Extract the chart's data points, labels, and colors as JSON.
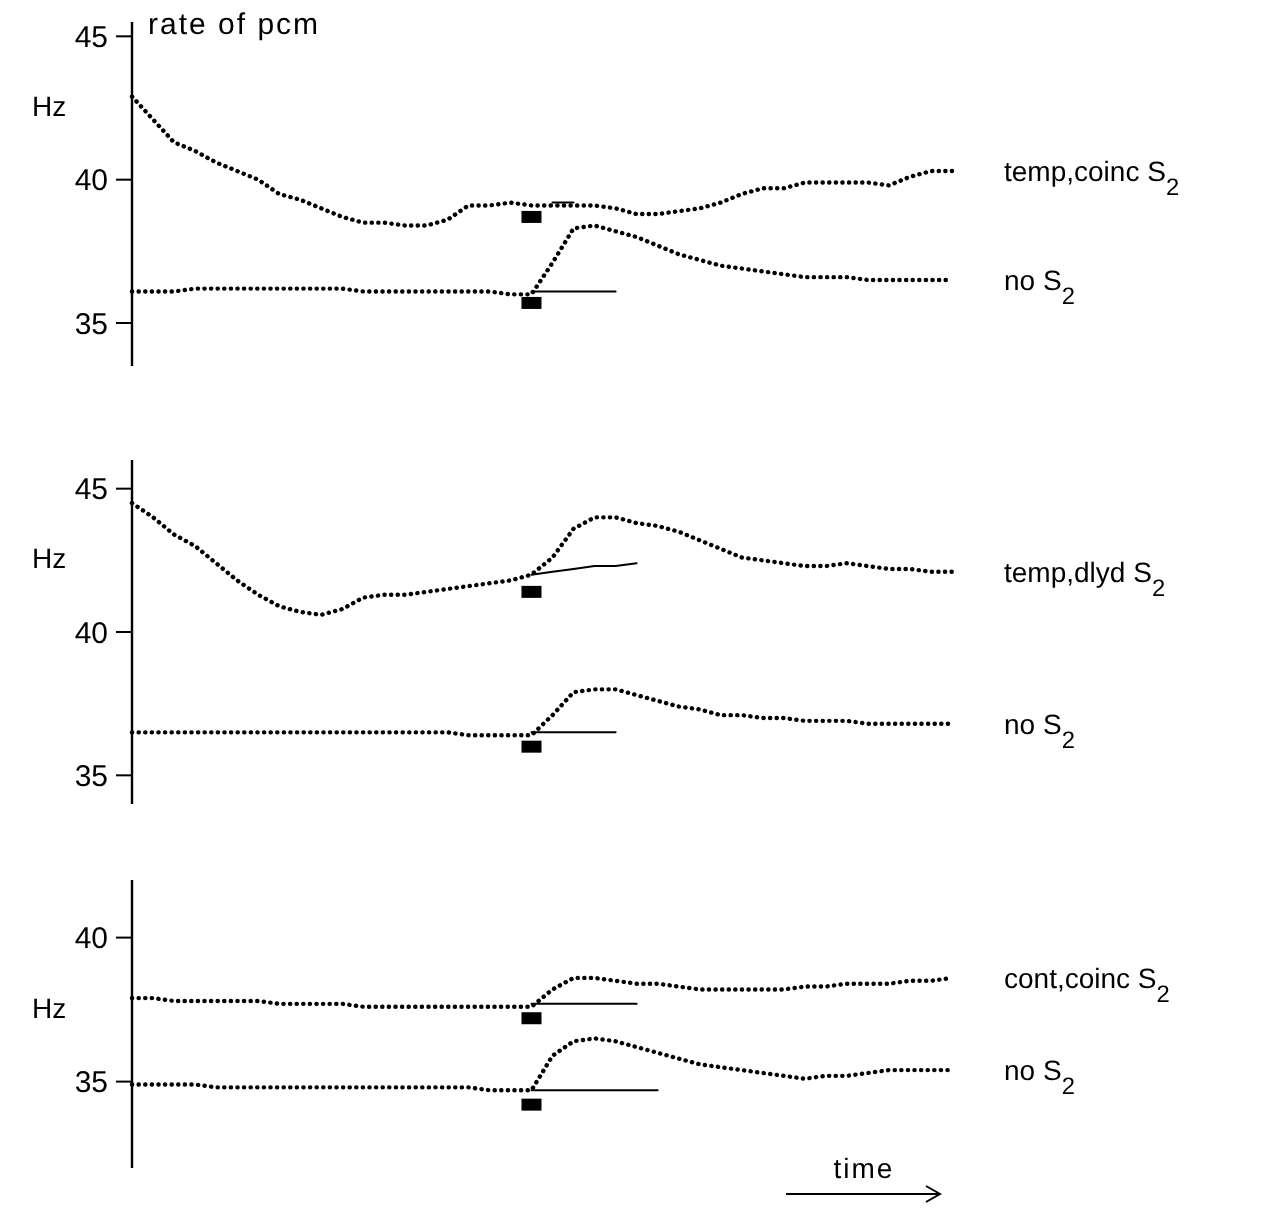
{
  "chart_data": [
    {
      "type": "line",
      "title": "rate of pcm",
      "ylabel": "Hz",
      "categories": [
        null,
        null,
        null,
        null,
        null,
        null,
        null,
        null,
        null,
        null,
        null,
        null,
        null,
        null,
        null,
        null,
        null,
        null,
        null,
        null,
        null,
        null,
        null,
        null,
        null,
        null,
        null,
        null,
        null,
        null,
        null,
        null,
        null,
        null,
        null,
        null,
        null,
        null,
        null,
        null
      ],
      "ylim": [
        33.5,
        45.5
      ],
      "yticks": [
        35,
        40,
        45
      ],
      "tick_labels": "y",
      "grid": false,
      "legend": false,
      "line_style": "dotted",
      "marker": "none",
      "series": [
        {
          "name": "temp,coinc S$_{2}$",
          "color": "#000000",
          "values": [
            42.9,
            42.1,
            41.3,
            41.0,
            40.6,
            40.3,
            40.0,
            39.5,
            39.3,
            39.0,
            38.7,
            38.5,
            38.5,
            38.4,
            38.4,
            38.6,
            39.1,
            39.1,
            39.2,
            39.1,
            39.1,
            39.1,
            39.1,
            39.0,
            38.8,
            38.8,
            38.9,
            39.0,
            39.2,
            39.5,
            39.7,
            39.7,
            39.9,
            39.9,
            39.9,
            39.9,
            39.8,
            40.1,
            40.3,
            40.3
          ]
        },
        {
          "name": "no S$_{2}$",
          "color": "#000000",
          "values": [
            36.1,
            36.1,
            36.1,
            36.2,
            36.2,
            36.2,
            36.2,
            36.2,
            36.2,
            36.2,
            36.2,
            36.1,
            36.1,
            36.1,
            36.1,
            36.1,
            36.1,
            36.1,
            36.0,
            36.0,
            37.1,
            38.3,
            38.4,
            38.2,
            38.0,
            37.7,
            37.4,
            37.2,
            37.0,
            36.9,
            36.8,
            36.7,
            36.6,
            36.6,
            36.6,
            36.5,
            36.5,
            36.5,
            36.5,
            36.5
          ]
        },
        {
          "type": "line",
          "line_style": "solid",
          "color": "#000000",
          "values": [
            null,
            null,
            null,
            null,
            null,
            null,
            null,
            null,
            null,
            null,
            null,
            null,
            null,
            null,
            null,
            null,
            null,
            null,
            null,
            null,
            39.2,
            39.2,
            null,
            null,
            null,
            null,
            null,
            null,
            null,
            null,
            null,
            null,
            null,
            null,
            null,
            null,
            null,
            null,
            null,
            null
          ]
        },
        {
          "type": "line",
          "line_style": "solid",
          "color": "#000000",
          "values": [
            null,
            null,
            null,
            null,
            null,
            null,
            null,
            null,
            null,
            null,
            null,
            null,
            null,
            null,
            null,
            null,
            null,
            null,
            null,
            36.1,
            36.1,
            36.1,
            36.1,
            36.1,
            null,
            null,
            null,
            null,
            null,
            null,
            null,
            null,
            null,
            null,
            null,
            null,
            null,
            null,
            null,
            null
          ]
        },
        {
          "type": "scatter",
          "marker": "square",
          "color": "#000000",
          "values": [
            null,
            null,
            null,
            null,
            null,
            null,
            null,
            null,
            null,
            null,
            null,
            null,
            null,
            null,
            null,
            null,
            null,
            null,
            null,
            38.7,
            null,
            null,
            null,
            null,
            null,
            null,
            null,
            null,
            null,
            null,
            null,
            null,
            null,
            null,
            null,
            null,
            null,
            null,
            null,
            null
          ]
        },
        {
          "type": "scatter",
          "marker": "square",
          "color": "#000000",
          "values": [
            null,
            null,
            null,
            null,
            null,
            null,
            null,
            null,
            null,
            null,
            null,
            null,
            null,
            null,
            null,
            null,
            null,
            null,
            null,
            35.7,
            null,
            null,
            null,
            null,
            null,
            null,
            null,
            null,
            null,
            null,
            null,
            null,
            null,
            null,
            null,
            null,
            null,
            null,
            null,
            null
          ]
        }
      ]
    },
    {
      "type": "line",
      "ylabel": "Hz",
      "categories": [
        null,
        null,
        null,
        null,
        null,
        null,
        null,
        null,
        null,
        null,
        null,
        null,
        null,
        null,
        null,
        null,
        null,
        null,
        null,
        null,
        null,
        null,
        null,
        null,
        null,
        null,
        null,
        null,
        null,
        null,
        null,
        null,
        null,
        null,
        null,
        null,
        null,
        null,
        null,
        null
      ],
      "ylim": [
        34,
        46
      ],
      "yticks": [
        35,
        40,
        45
      ],
      "tick_labels": "y",
      "grid": false,
      "legend": false,
      "line_style": "dotted",
      "marker": "none",
      "series": [
        {
          "name": "temp,dlyd S$_{2}$",
          "color": "#000000",
          "values": [
            44.5,
            44.0,
            43.4,
            43.0,
            42.4,
            41.8,
            41.3,
            40.9,
            40.7,
            40.6,
            40.8,
            41.2,
            41.3,
            41.3,
            41.4,
            41.5,
            41.6,
            41.7,
            41.8,
            42.0,
            42.6,
            43.6,
            44.0,
            44.0,
            43.8,
            43.7,
            43.5,
            43.2,
            42.9,
            42.6,
            42.5,
            42.4,
            42.3,
            42.3,
            42.4,
            42.3,
            42.2,
            42.2,
            42.1,
            42.1
          ]
        },
        {
          "name": "no S$_{2}$",
          "color": "#000000",
          "values": [
            36.5,
            36.5,
            36.5,
            36.5,
            36.5,
            36.5,
            36.5,
            36.5,
            36.5,
            36.5,
            36.5,
            36.5,
            36.5,
            36.5,
            36.5,
            36.5,
            36.4,
            36.4,
            36.4,
            36.4,
            37.1,
            37.9,
            38.0,
            38.0,
            37.8,
            37.6,
            37.4,
            37.3,
            37.1,
            37.1,
            37.0,
            37.0,
            36.9,
            36.9,
            36.9,
            36.8,
            36.8,
            36.8,
            36.8,
            36.8
          ]
        },
        {
          "type": "line",
          "line_style": "solid",
          "color": "#000000",
          "values": [
            null,
            null,
            null,
            null,
            null,
            null,
            null,
            null,
            null,
            null,
            null,
            null,
            null,
            null,
            null,
            null,
            null,
            null,
            null,
            42.0,
            42.1,
            42.2,
            42.3,
            42.3,
            42.4,
            null,
            null,
            null,
            null,
            null,
            null,
            null,
            null,
            null,
            null,
            null,
            null,
            null,
            null,
            null
          ]
        },
        {
          "type": "line",
          "line_style": "solid",
          "color": "#000000",
          "values": [
            null,
            null,
            null,
            null,
            null,
            null,
            null,
            null,
            null,
            null,
            null,
            null,
            null,
            null,
            null,
            null,
            null,
            null,
            null,
            36.5,
            36.5,
            36.5,
            36.5,
            36.5,
            null,
            null,
            null,
            null,
            null,
            null,
            null,
            null,
            null,
            null,
            null,
            null,
            null,
            null,
            null,
            null
          ]
        },
        {
          "type": "scatter",
          "marker": "square",
          "color": "#000000",
          "values": [
            null,
            null,
            null,
            null,
            null,
            null,
            null,
            null,
            null,
            null,
            null,
            null,
            null,
            null,
            null,
            null,
            null,
            null,
            null,
            41.4,
            null,
            null,
            null,
            null,
            null,
            null,
            null,
            null,
            null,
            null,
            null,
            null,
            null,
            null,
            null,
            null,
            null,
            null,
            null,
            null
          ]
        },
        {
          "type": "scatter",
          "marker": "square",
          "color": "#000000",
          "values": [
            null,
            null,
            null,
            null,
            null,
            null,
            null,
            null,
            null,
            null,
            null,
            null,
            null,
            null,
            null,
            null,
            null,
            null,
            null,
            36.0,
            null,
            null,
            null,
            null,
            null,
            null,
            null,
            null,
            null,
            null,
            null,
            null,
            null,
            null,
            null,
            null,
            null,
            null,
            null,
            null
          ]
        }
      ]
    },
    {
      "type": "line",
      "ylabel": "Hz",
      "xlabel": "time",
      "categories": [
        null,
        null,
        null,
        null,
        null,
        null,
        null,
        null,
        null,
        null,
        null,
        null,
        null,
        null,
        null,
        null,
        null,
        null,
        null,
        null,
        null,
        null,
        null,
        null,
        null,
        null,
        null,
        null,
        null,
        null,
        null,
        null,
        null,
        null,
        null,
        null,
        null,
        null,
        null,
        null
      ],
      "ylim": [
        32,
        42
      ],
      "yticks": [
        35,
        40
      ],
      "tick_labels": "y",
      "grid": false,
      "legend": false,
      "line_style": "dotted",
      "marker": "none",
      "series": [
        {
          "name": "cont,coinc S$_{2}$",
          "color": "#000000",
          "values": [
            37.9,
            37.9,
            37.8,
            37.8,
            37.8,
            37.8,
            37.8,
            37.7,
            37.7,
            37.7,
            37.7,
            37.6,
            37.6,
            37.6,
            37.6,
            37.6,
            37.6,
            37.6,
            37.6,
            37.6,
            38.2,
            38.6,
            38.6,
            38.5,
            38.4,
            38.4,
            38.3,
            38.2,
            38.2,
            38.2,
            38.2,
            38.2,
            38.3,
            38.3,
            38.4,
            38.4,
            38.4,
            38.5,
            38.5,
            38.6
          ]
        },
        {
          "name": "no S$_{2}$",
          "color": "#000000",
          "values": [
            34.9,
            34.9,
            34.9,
            34.9,
            34.8,
            34.8,
            34.8,
            34.8,
            34.8,
            34.8,
            34.8,
            34.8,
            34.8,
            34.8,
            34.8,
            34.8,
            34.8,
            34.7,
            34.7,
            34.7,
            35.9,
            36.4,
            36.5,
            36.4,
            36.2,
            36.0,
            35.8,
            35.6,
            35.5,
            35.4,
            35.3,
            35.2,
            35.1,
            35.2,
            35.2,
            35.3,
            35.4,
            35.4,
            35.4,
            35.4
          ]
        },
        {
          "type": "line",
          "line_style": "solid",
          "color": "#000000",
          "values": [
            null,
            null,
            null,
            null,
            null,
            null,
            null,
            null,
            null,
            null,
            null,
            null,
            null,
            null,
            null,
            null,
            null,
            null,
            null,
            37.7,
            37.7,
            37.7,
            37.7,
            37.7,
            37.7,
            null,
            null,
            null,
            null,
            null,
            null,
            null,
            null,
            null,
            null,
            null,
            null,
            null,
            null,
            null
          ]
        },
        {
          "type": "line",
          "line_style": "solid",
          "color": "#000000",
          "values": [
            null,
            null,
            null,
            null,
            null,
            null,
            null,
            null,
            null,
            null,
            null,
            null,
            null,
            null,
            null,
            null,
            null,
            null,
            null,
            34.7,
            34.7,
            34.7,
            34.7,
            34.7,
            34.7,
            34.7,
            null,
            null,
            null,
            null,
            null,
            null,
            null,
            null,
            null,
            null,
            null,
            null,
            null,
            null
          ]
        },
        {
          "type": "scatter",
          "marker": "square",
          "color": "#000000",
          "values": [
            null,
            null,
            null,
            null,
            null,
            null,
            null,
            null,
            null,
            null,
            null,
            null,
            null,
            null,
            null,
            null,
            null,
            null,
            null,
            37.2,
            null,
            null,
            null,
            null,
            null,
            null,
            null,
            null,
            null,
            null,
            null,
            null,
            null,
            null,
            null,
            null,
            null,
            null,
            null,
            null
          ]
        },
        {
          "type": "scatter",
          "marker": "square",
          "color": "#000000",
          "values": [
            null,
            null,
            null,
            null,
            null,
            null,
            null,
            null,
            null,
            null,
            null,
            null,
            null,
            null,
            null,
            null,
            null,
            null,
            null,
            34.2,
            null,
            null,
            null,
            null,
            null,
            null,
            null,
            null,
            null,
            null,
            null,
            null,
            null,
            null,
            null,
            null,
            null,
            null,
            null,
            null
          ]
        }
      ]
    }
  ]
}
